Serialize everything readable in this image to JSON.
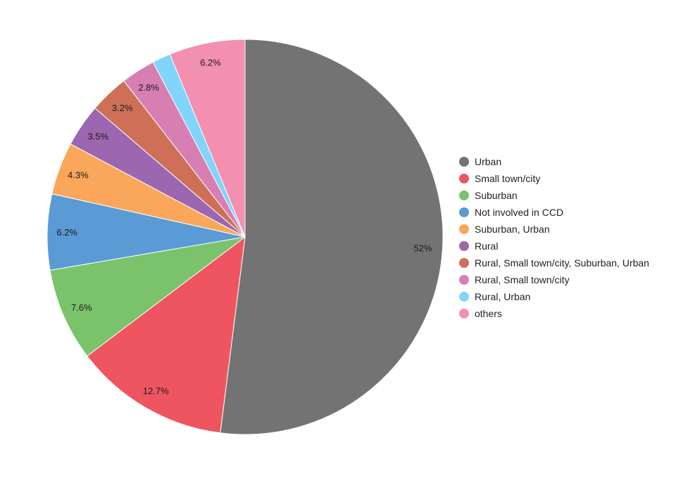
{
  "chart_data": {
    "type": "pie",
    "title": "",
    "labels": [
      "Urban",
      "Small town/city",
      "Suburban",
      "Not involved in CCD",
      "Suburban, Urban",
      "Rural",
      "Rural, Small town/city, Suburban, Urban",
      "Rural, Small town/city",
      "Rural, Urban",
      "others"
    ],
    "values": [
      52,
      12.7,
      7.6,
      6.2,
      4.3,
      3.5,
      3.2,
      2.8,
      1.5,
      6.2
    ],
    "value_labels": [
      "52%",
      "12.7%",
      "7.6%",
      "6.2%",
      "4.3%",
      "3.5%",
      "3.2%",
      "2.8%",
      "",
      "6.2%"
    ],
    "colors": [
      "#737373",
      "#ef5561",
      "#7ac36a",
      "#5a9bd5",
      "#faa75b",
      "#9d66b0",
      "#ce7058",
      "#d77fb3",
      "#81d4fa",
      "#f38fb1"
    ],
    "legend_position": "right",
    "start_angle": "12 o'clock",
    "direction": "clockwise"
  }
}
